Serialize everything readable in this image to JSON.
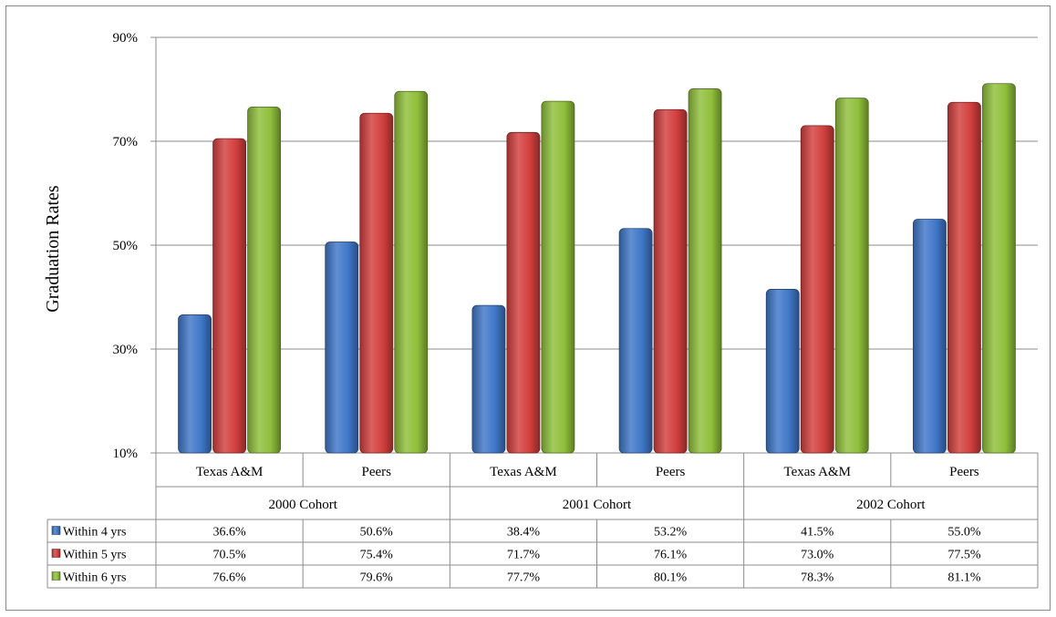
{
  "chart_data": {
    "type": "bar",
    "ylabel": "Graduation Rates",
    "ylim": [
      10,
      90
    ],
    "yticks": [
      10,
      30,
      50,
      70,
      90
    ],
    "ytick_labels": [
      "10%",
      "30%",
      "50%",
      "70%",
      "90%"
    ],
    "grid": true,
    "legend": "data-table",
    "categories": [
      "Texas A&M",
      "Peers",
      "Texas A&M",
      "Peers",
      "Texas A&M",
      "Peers"
    ],
    "groups": [
      {
        "label": "2000 Cohort",
        "span": [
          0,
          1
        ]
      },
      {
        "label": "2001 Cohort",
        "span": [
          2,
          3
        ]
      },
      {
        "label": "2002 Cohort",
        "span": [
          4,
          5
        ]
      }
    ],
    "series": [
      {
        "name": "Within 4 yrs",
        "color": "#3f77c8",
        "values": [
          36.6,
          50.6,
          38.4,
          53.2,
          41.5,
          55.0
        ],
        "labels": [
          "36.6%",
          "50.6%",
          "38.4%",
          "53.2%",
          "41.5%",
          "55.0%"
        ]
      },
      {
        "name": "Within 5 yrs",
        "color": "#d23f3d",
        "values": [
          70.5,
          75.4,
          71.7,
          76.1,
          73.0,
          77.5
        ],
        "labels": [
          "70.5%",
          "75.4%",
          "71.7%",
          "76.1%",
          "73.0%",
          "77.5%"
        ]
      },
      {
        "name": "Within 6 yrs",
        "color": "#8fbf3a",
        "values": [
          76.6,
          79.6,
          77.7,
          80.1,
          78.3,
          81.1
        ],
        "labels": [
          "76.6%",
          "79.6%",
          "77.7%",
          "80.1%",
          "78.3%",
          "81.1%"
        ]
      }
    ]
  }
}
